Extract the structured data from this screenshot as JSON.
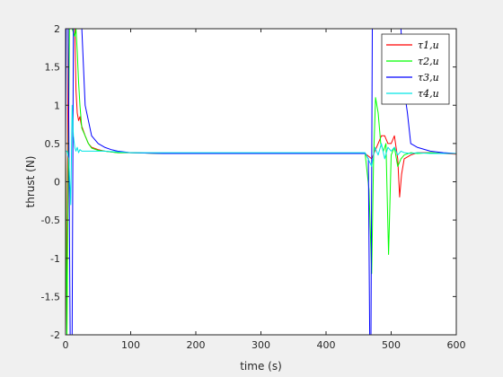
{
  "chart_data": {
    "type": "line",
    "title": "",
    "xlabel": "time (s)",
    "ylabel": "thrust (N)",
    "xlim": [
      0,
      600
    ],
    "ylim": [
      -2,
      2
    ],
    "xticks": [
      0,
      100,
      200,
      300,
      400,
      500,
      600
    ],
    "yticks": [
      -2,
      -1.5,
      -1,
      -0.5,
      0,
      0.5,
      1,
      1.5,
      2
    ],
    "xtick_labels": [
      "0",
      "100",
      "200",
      "300",
      "400",
      "500",
      "600"
    ],
    "ytick_labels": [
      "-2",
      "-1.5",
      "-1",
      "-0.5",
      "0",
      "0.5",
      "1",
      "1.5",
      "2"
    ],
    "grid": false,
    "legend_position": "top-right",
    "series": [
      {
        "name": "τ1,u",
        "color": "#ff0000",
        "x": [
          0,
          2,
          4,
          6,
          10,
          14,
          16,
          18,
          20,
          22,
          24,
          26,
          30,
          35,
          40,
          50,
          60,
          70,
          80,
          100,
          150,
          200,
          250,
          300,
          350,
          400,
          440,
          460,
          470,
          475,
          480,
          485,
          490,
          495,
          500,
          505,
          510,
          513,
          516,
          520,
          530,
          540,
          560,
          580,
          600
        ],
        "y": [
          0.4,
          -2,
          2,
          2,
          2,
          2,
          1.2,
          0.9,
          0.8,
          0.85,
          0.75,
          0.7,
          0.6,
          0.5,
          0.45,
          0.42,
          0.4,
          0.39,
          0.38,
          0.38,
          0.37,
          0.37,
          0.37,
          0.37,
          0.37,
          0.37,
          0.37,
          0.37,
          0.3,
          0.4,
          0.5,
          0.6,
          0.6,
          0.5,
          0.5,
          0.6,
          0.3,
          -0.2,
          0.1,
          0.3,
          0.35,
          0.38,
          0.38,
          0.37,
          0.36
        ]
      },
      {
        "name": "τ2,u",
        "color": "#00ff00",
        "x": [
          0,
          2,
          6,
          10,
          14,
          16,
          18,
          20,
          22,
          25,
          30,
          35,
          40,
          50,
          60,
          70,
          80,
          100,
          150,
          200,
          250,
          300,
          350,
          400,
          440,
          460,
          466,
          470,
          473,
          476,
          480,
          484,
          488,
          492,
          496,
          500,
          505,
          510,
          515,
          520,
          530,
          540,
          560,
          580,
          600
        ],
        "y": [
          0.4,
          -2,
          2,
          2,
          1.9,
          2,
          1.7,
          1.3,
          1,
          0.7,
          0.6,
          0.5,
          0.44,
          0.41,
          0.4,
          0.39,
          0.38,
          0.38,
          0.37,
          0.37,
          0.37,
          0.37,
          0.37,
          0.37,
          0.37,
          0.37,
          -0.1,
          -1.2,
          0.3,
          1.1,
          0.9,
          0.5,
          0.4,
          0.5,
          -0.95,
          0.35,
          0.45,
          0.2,
          0.3,
          0.35,
          0.38,
          0.37,
          0.38,
          0.37,
          0.37
        ]
      },
      {
        "name": "τ3,u",
        "color": "#0000ff",
        "x": [
          0,
          1,
          4,
          7,
          10,
          12,
          15,
          25,
          30,
          40,
          45,
          50,
          60,
          70,
          80,
          100,
          150,
          200,
          250,
          300,
          350,
          400,
          440,
          460,
          465,
          467,
          469,
          471,
          473,
          476,
          480,
          485,
          490,
          495,
          500,
          505,
          510,
          512,
          515,
          520,
          525,
          530,
          540,
          560,
          580,
          600
        ],
        "y": [
          0.4,
          2,
          2,
          -2,
          -2,
          2,
          2,
          2,
          1,
          0.6,
          0.55,
          0.5,
          0.45,
          0.42,
          0.4,
          0.38,
          0.37,
          0.37,
          0.37,
          0.37,
          0.37,
          0.37,
          0.37,
          0.37,
          0.3,
          -2,
          -2,
          2,
          2,
          2,
          2,
          2,
          2,
          2,
          2,
          2,
          2,
          2,
          2,
          1.2,
          0.9,
          0.5,
          0.45,
          0.4,
          0.38,
          0.37
        ]
      },
      {
        "name": "τ4,u",
        "color": "#00e5e5",
        "x": [
          0,
          2,
          5,
          8,
          10,
          12,
          14,
          16,
          18,
          20,
          22,
          25,
          30,
          40,
          50,
          60,
          80,
          100,
          150,
          200,
          250,
          300,
          350,
          400,
          440,
          460,
          470,
          475,
          480,
          485,
          490,
          495,
          500,
          505,
          510,
          515,
          520,
          530,
          540,
          560,
          580,
          600
        ],
        "y": [
          0.4,
          0.4,
          0.3,
          -0.3,
          1.0,
          0.6,
          0.45,
          0.4,
          0.45,
          0.38,
          0.42,
          0.4,
          0.4,
          0.4,
          0.4,
          0.4,
          0.39,
          0.38,
          0.38,
          0.38,
          0.38,
          0.38,
          0.38,
          0.38,
          0.38,
          0.38,
          0.2,
          0.45,
          0.35,
          0.5,
          0.3,
          0.45,
          0.4,
          0.45,
          0.35,
          0.4,
          0.38,
          0.37,
          0.38,
          0.37,
          0.37,
          0.37
        ]
      }
    ]
  }
}
